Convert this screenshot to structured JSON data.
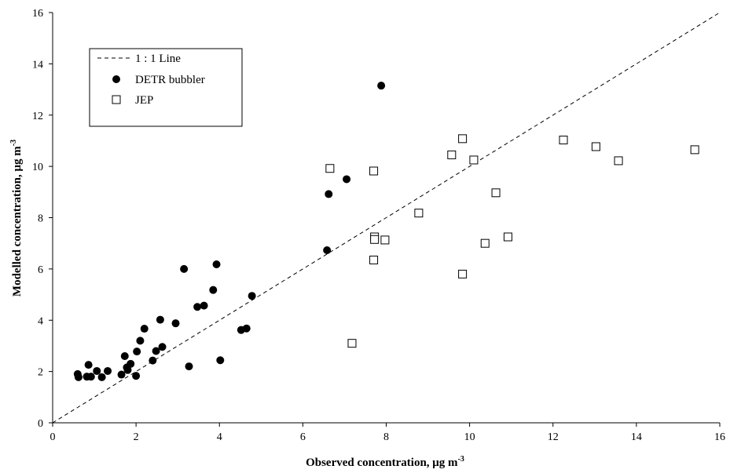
{
  "chart_data": {
    "type": "scatter",
    "xlabel": "Observed concentration, μg m",
    "xlabel_sup": "-3",
    "ylabel": "Modelled concentration,  μg m",
    "ylabel_sup": "-3",
    "xlim": [
      0,
      16
    ],
    "ylim": [
      0,
      16
    ],
    "xticks": [
      0,
      2,
      4,
      6,
      8,
      10,
      12,
      14,
      16
    ],
    "yticks": [
      0,
      2,
      4,
      6,
      8,
      10,
      12,
      14,
      16
    ],
    "grid": false,
    "legend_position": "top-left",
    "reference_line": {
      "name": "1 : 1 Line",
      "x": [
        0,
        16
      ],
      "y": [
        0,
        16
      ],
      "style": "dashed"
    },
    "series": [
      {
        "name": "DETR bubbler",
        "marker": "filled-circle",
        "points": [
          [
            0.6,
            1.9
          ],
          [
            0.62,
            1.78
          ],
          [
            0.82,
            1.8
          ],
          [
            0.86,
            2.26
          ],
          [
            0.92,
            1.8
          ],
          [
            1.06,
            2.02
          ],
          [
            1.18,
            1.78
          ],
          [
            1.32,
            2.02
          ],
          [
            1.65,
            1.88
          ],
          [
            1.73,
            2.6
          ],
          [
            1.78,
            2.16
          ],
          [
            1.8,
            2.06
          ],
          [
            1.87,
            2.3
          ],
          [
            2.0,
            1.83
          ],
          [
            2.02,
            2.78
          ],
          [
            2.1,
            3.2
          ],
          [
            2.2,
            3.67
          ],
          [
            2.4,
            2.43
          ],
          [
            2.48,
            2.8
          ],
          [
            2.58,
            4.02
          ],
          [
            2.63,
            2.96
          ],
          [
            2.95,
            3.88
          ],
          [
            3.15,
            6.0
          ],
          [
            3.27,
            2.2
          ],
          [
            3.47,
            4.52
          ],
          [
            3.63,
            4.57
          ],
          [
            3.85,
            5.18
          ],
          [
            3.93,
            6.18
          ],
          [
            4.02,
            2.44
          ],
          [
            4.52,
            3.62
          ],
          [
            4.65,
            3.68
          ],
          [
            4.78,
            4.95
          ],
          [
            6.58,
            6.73
          ],
          [
            6.62,
            8.92
          ],
          [
            7.05,
            9.5
          ],
          [
            7.88,
            13.15
          ]
        ]
      },
      {
        "name": "JEP",
        "marker": "open-square",
        "points": [
          [
            6.65,
            9.92
          ],
          [
            7.18,
            3.1
          ],
          [
            7.7,
            9.82
          ],
          [
            7.72,
            7.25
          ],
          [
            7.72,
            7.15
          ],
          [
            7.7,
            6.35
          ],
          [
            7.97,
            7.13
          ],
          [
            8.78,
            8.18
          ],
          [
            9.57,
            10.45
          ],
          [
            9.83,
            11.08
          ],
          [
            9.83,
            5.8
          ],
          [
            10.1,
            10.25
          ],
          [
            10.37,
            7.0
          ],
          [
            10.63,
            8.97
          ],
          [
            10.92,
            7.25
          ],
          [
            12.25,
            11.03
          ],
          [
            13.03,
            10.77
          ],
          [
            13.57,
            10.22
          ],
          [
            15.4,
            10.65
          ]
        ]
      }
    ]
  }
}
